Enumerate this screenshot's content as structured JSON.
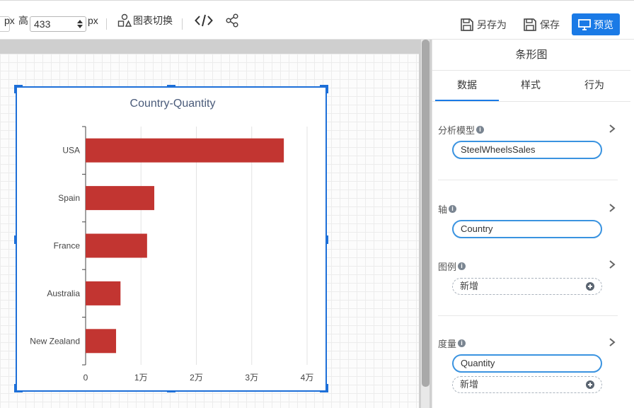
{
  "toolbar": {
    "width_unit": "px",
    "height_label": "高",
    "height_value": "433",
    "height_unit": "px",
    "switch_chart_label": "图表切换",
    "save_as_label": "另存为",
    "save_label": "保存",
    "preview_label": "预览",
    "icons": [
      "chart-switch-icon",
      "code-icon",
      "share-icon",
      "save-as-icon",
      "save-icon",
      "monitor-icon"
    ]
  },
  "panel": {
    "title": "条形图",
    "tabs": [
      {
        "label": "数据",
        "active": true
      },
      {
        "label": "样式",
        "active": false
      },
      {
        "label": "行为",
        "active": false
      }
    ],
    "sections": {
      "model": {
        "label": "分析模型",
        "value": "SteelWheelsSales"
      },
      "axis": {
        "label": "轴",
        "value": "Country"
      },
      "legend": {
        "label": "图例",
        "add_label": "新增"
      },
      "measure": {
        "label": "度量",
        "value": "Quantity",
        "add_label": "新增"
      }
    }
  },
  "colors": {
    "accent": "#1a7ae6",
    "bar": "#c23531",
    "title": "#4a5b7a"
  },
  "chart_data": {
    "type": "bar",
    "orientation": "horizontal",
    "title": "Country-Quantity",
    "categories": [
      "USA",
      "Spain",
      "France",
      "Australia",
      "New Zealand"
    ],
    "values": [
      35800,
      12400,
      11100,
      6300,
      5500
    ],
    "xlim": [
      0,
      40000
    ],
    "x_ticks": [
      0,
      10000,
      20000,
      30000,
      40000
    ],
    "x_tick_labels": [
      "0",
      "1万",
      "2万",
      "3万",
      "4万"
    ],
    "grid": "vertical",
    "legend": "none"
  }
}
